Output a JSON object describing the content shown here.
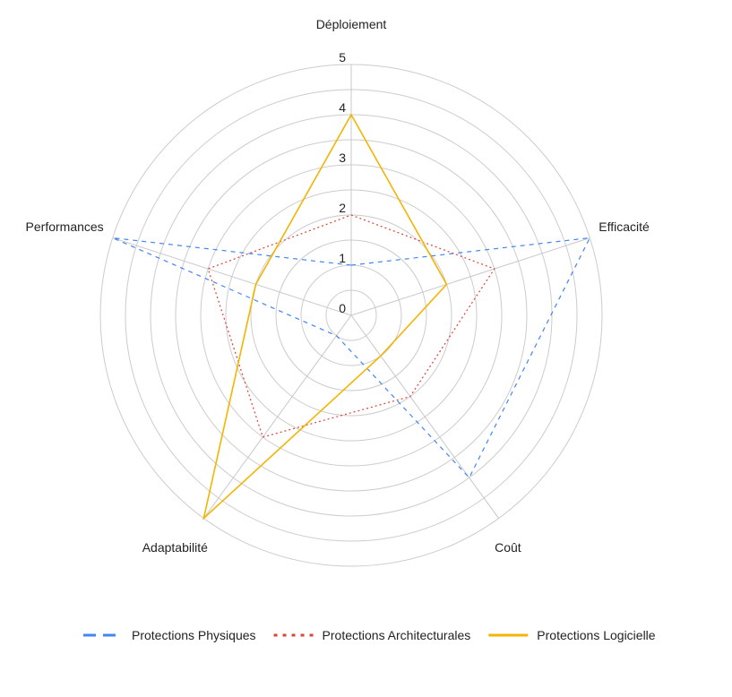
{
  "chart_data": {
    "type": "radar",
    "axes": [
      "Déploiement",
      "Efficacité",
      "Coût",
      "Adaptabilité",
      "Performances"
    ],
    "ticks": [
      "0",
      "1",
      "2",
      "3",
      "4",
      "5"
    ],
    "rlim": [
      0,
      5
    ],
    "grid": true,
    "legend_position": "bottom",
    "series": [
      {
        "name": "Protections Physiques",
        "values": [
          1,
          5,
          4,
          0.5,
          5
        ],
        "color": "#4285f4",
        "dash": "dashed"
      },
      {
        "name": "Protections Architecturales",
        "values": [
          2,
          3,
          2,
          3,
          3
        ],
        "color": "#db4437",
        "dash": "dotted"
      },
      {
        "name": "Protections Logicielle",
        "values": [
          4,
          2,
          1,
          5,
          2
        ],
        "color": "#f4b400",
        "dash": "solid"
      }
    ]
  }
}
